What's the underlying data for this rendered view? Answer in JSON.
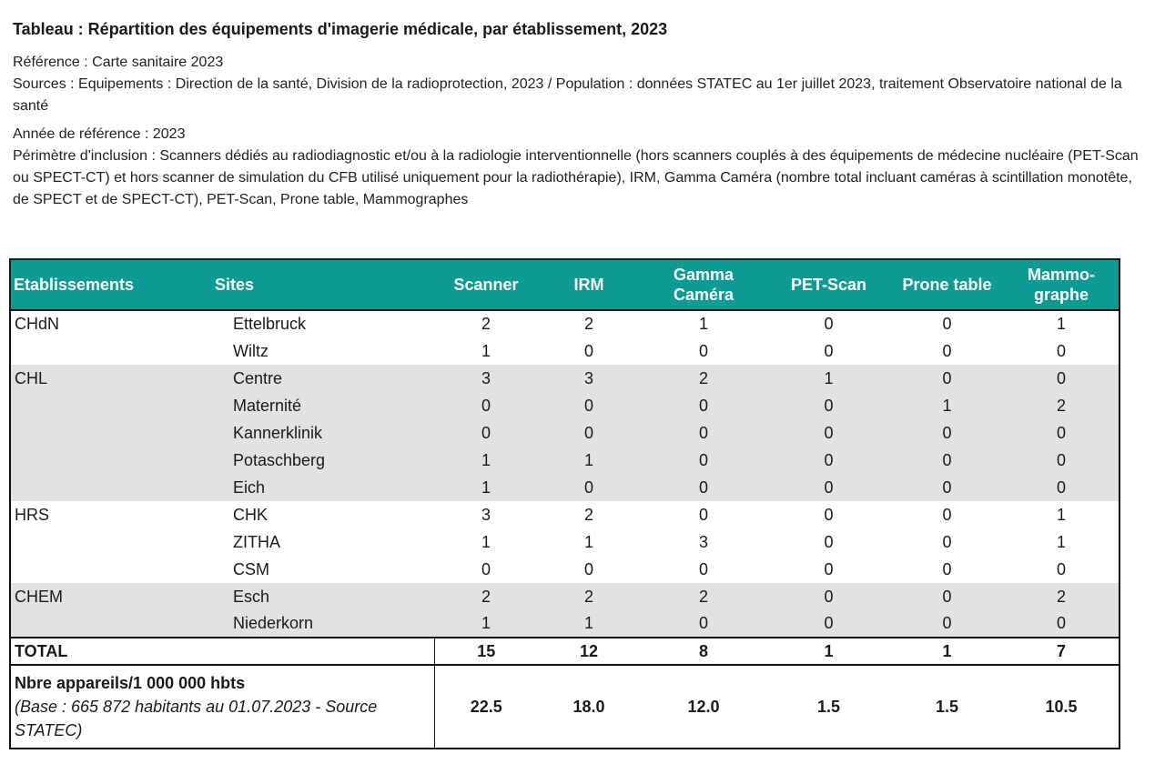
{
  "title": "Tableau : Répartition des équipements d'imagerie médicale, par établissement, 2023",
  "meta": {
    "reference": "Référence : Carte sanitaire 2023",
    "sources": "Sources : Equipements : Direction de la santé, Division de la radioprotection, 2023 / Population : données STATEC au 1er juillet 2023, traitement Observatoire national de la santé",
    "annee": "Année de référence : 2023",
    "perimetre": "Périmètre d'inclusion : Scanners dédiés au radiodiagnostic et/ou à la radiologie interventionnelle (hors scanners couplés à des équipements de médecine nucléaire (PET-Scan ou SPECT-CT) et hors scanner de simulation du CFB utilisé uniquement pour la radiothérapie), IRM, Gamma Caméra (nombre total incluant caméras à scintillation monotête, de SPECT et de SPECT-CT), PET-Scan, Prone table, Mammographes"
  },
  "table": {
    "headers": {
      "etablissements": "Etablissements",
      "sites": "Sites",
      "scanner": "Scanner",
      "irm": "IRM",
      "gamma_1": "Gamma",
      "gamma_2": "Caméra",
      "pet": "PET-Scan",
      "prone": "Prone table",
      "mammo_1": "Mammo-",
      "mammo_2": "graphe"
    },
    "header_color": "#0e9b94",
    "shade_color": "#e2e2e2",
    "rows": [
      {
        "etab": "CHdN",
        "site": "Ettelbruck",
        "v": [
          "2",
          "2",
          "1",
          "0",
          "0",
          "1"
        ]
      },
      {
        "etab": "",
        "site": "Wiltz",
        "v": [
          "1",
          "0",
          "0",
          "0",
          "0",
          "0"
        ]
      },
      {
        "etab": "CHL",
        "site": "Centre",
        "v": [
          "3",
          "3",
          "2",
          "1",
          "0",
          "0"
        ]
      },
      {
        "etab": "",
        "site": "Maternité",
        "v": [
          "0",
          "0",
          "0",
          "0",
          "1",
          "2"
        ]
      },
      {
        "etab": "",
        "site": "Kannerklinik",
        "v": [
          "0",
          "0",
          "0",
          "0",
          "0",
          "0"
        ]
      },
      {
        "etab": "",
        "site": "Potaschberg",
        "v": [
          "1",
          "1",
          "0",
          "0",
          "0",
          "0"
        ]
      },
      {
        "etab": "",
        "site": "Eich",
        "v": [
          "1",
          "0",
          "0",
          "0",
          "0",
          "0"
        ]
      },
      {
        "etab": "HRS",
        "site": "CHK",
        "v": [
          "3",
          "2",
          "0",
          "0",
          "0",
          "1"
        ]
      },
      {
        "etab": "",
        "site": "ZITHA",
        "v": [
          "1",
          "1",
          "3",
          "0",
          "0",
          "1"
        ]
      },
      {
        "etab": "",
        "site": "CSM",
        "v": [
          "0",
          "0",
          "0",
          "0",
          "0",
          "0"
        ]
      },
      {
        "etab": "CHEM",
        "site": "Esch",
        "v": [
          "2",
          "2",
          "2",
          "0",
          "0",
          "2"
        ]
      },
      {
        "etab": "",
        "site": "Niederkorn",
        "v": [
          "1",
          "1",
          "0",
          "0",
          "0",
          "0"
        ]
      }
    ],
    "total": {
      "label": "TOTAL",
      "v": [
        "15",
        "12",
        "8",
        "1",
        "1",
        "7"
      ]
    },
    "rate": {
      "title": "Nbre appareils/1 000 000 hbts",
      "sub": "(Base : 665 872 habitants au 01.07.2023 - Source STATEC)",
      "v": [
        "22.5",
        "18.0",
        "12.0",
        "1.5",
        "1.5",
        "10.5"
      ]
    }
  }
}
